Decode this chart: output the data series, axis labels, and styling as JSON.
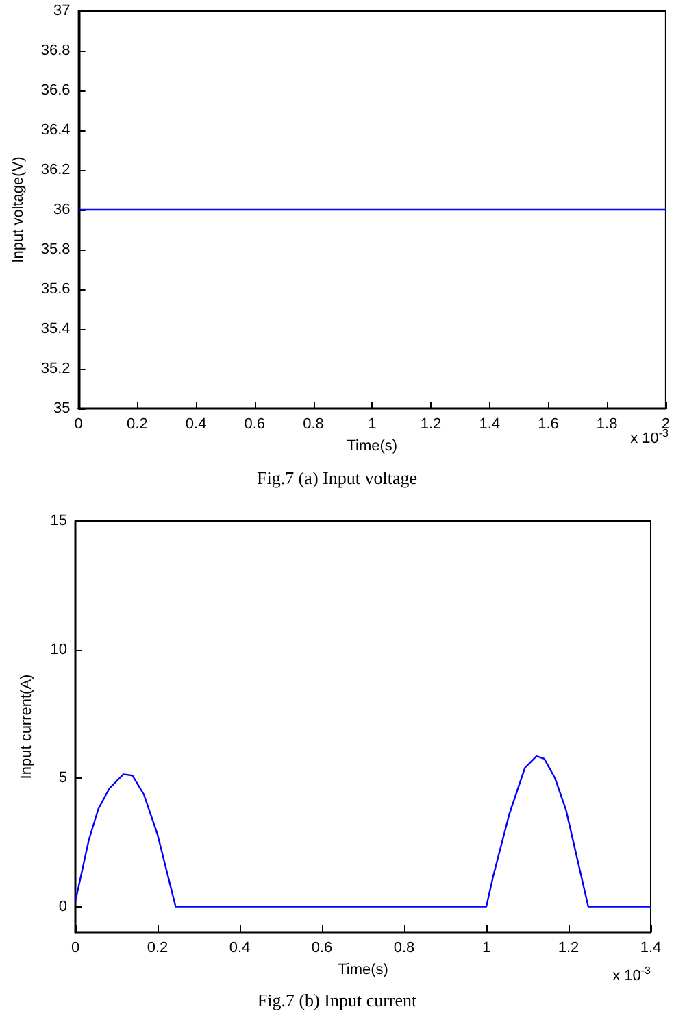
{
  "chart_data": [
    {
      "type": "line",
      "xlabel": "Time(s)",
      "ylabel": "Input voltage(V)",
      "x": [
        0,
        2
      ],
      "series": [
        {
          "color": "#0000ff",
          "values": [
            36,
            36
          ]
        }
      ],
      "xlim": [
        0,
        2
      ],
      "xticks": [
        0,
        0.2,
        0.4,
        0.6,
        0.8,
        1,
        1.2,
        1.4,
        1.6,
        1.8,
        2
      ],
      "ylim": [
        35,
        37
      ],
      "yticks": [
        35,
        35.2,
        35.4,
        35.6,
        35.8,
        36,
        36.2,
        36.4,
        36.6,
        36.8,
        37
      ],
      "grid": false,
      "marker": "none",
      "annotations": [
        "x 10$^{-3}$",
        "Fig.7 (a) Input voltage"
      ]
    },
    {
      "type": "line",
      "xlabel": "Time(s)",
      "ylabel": "Input current(A)",
      "x": [
        0,
        0.033,
        0.056,
        0.083,
        0.117,
        0.139,
        0.167,
        0.2,
        0.244,
        1.0,
        1.017,
        1.056,
        1.094,
        1.122,
        1.141,
        1.167,
        1.194,
        1.248,
        1.4
      ],
      "series": [
        {
          "color": "#0000ff",
          "values": [
            0.2,
            2.6,
            3.8,
            4.6,
            5.15,
            5.1,
            4.35,
            2.8,
            0,
            0,
            1.2,
            3.6,
            5.4,
            5.85,
            5.75,
            5.0,
            3.75,
            0,
            0
          ]
        }
      ],
      "xlim": [
        0,
        1.4
      ],
      "xticks": [
        0,
        0.2,
        0.4,
        0.6,
        0.8,
        1,
        1.2,
        1.4
      ],
      "ylim": [
        -1,
        15
      ],
      "yticks": [
        0,
        5,
        10,
        15
      ],
      "grid": false,
      "marker": "none",
      "annotations": [
        "x 10$^{-3}$",
        "Fig.7 (b) Input current"
      ]
    }
  ]
}
